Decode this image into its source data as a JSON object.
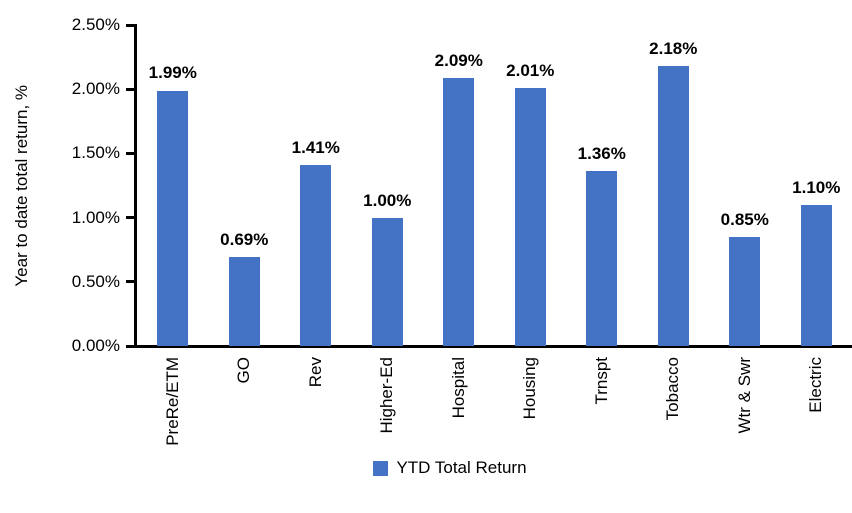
{
  "chart_data": {
    "type": "bar",
    "title": "",
    "xlabel": "",
    "ylabel": "Year to date total return, %",
    "categories": [
      "PreRe/ETM",
      "GO",
      "Rev",
      "Higher-Ed",
      "Hospital",
      "Housing",
      "Trnspt",
      "Tobacco",
      "Wtr & Swr",
      "Electric"
    ],
    "values": [
      1.99,
      0.69,
      1.41,
      1.0,
      2.09,
      2.01,
      1.36,
      2.18,
      0.85,
      1.1
    ],
    "data_labels": [
      "1.99%",
      "0.69%",
      "1.41%",
      "1.00%",
      "2.09%",
      "2.01%",
      "1.36%",
      "2.18%",
      "0.85%",
      "1.10%"
    ],
    "ylim": [
      0,
      2.5
    ],
    "ytick_labels": [
      "0.00%",
      "0.50%",
      "1.00%",
      "1.50%",
      "2.00%",
      "2.50%"
    ],
    "grid": false,
    "bar_color": "#4472C4",
    "legend": {
      "position": "bottom",
      "entries": [
        {
          "label": "YTD Total Return",
          "color": "#4472C4"
        }
      ]
    }
  }
}
